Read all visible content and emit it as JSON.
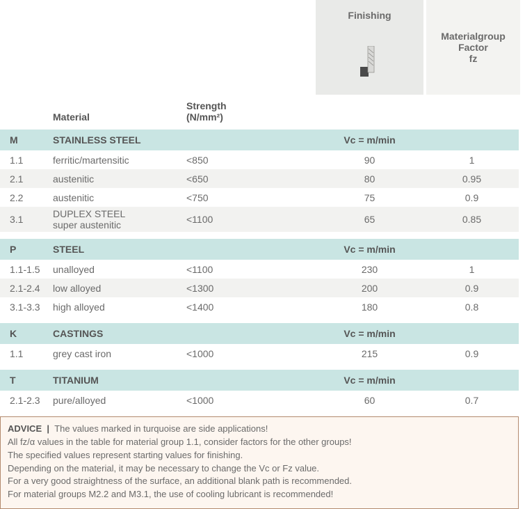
{
  "header": {
    "finishing_label": "Finishing",
    "factor_label_line1": "Materialgroup",
    "factor_label_line2": "Factor",
    "factor_label_line3": "fz"
  },
  "columns": {
    "material": "Material",
    "strength": "Strength (N/mm²)"
  },
  "groups": [
    {
      "code": "M",
      "name": "STAINLESS STEEL",
      "vc_label": "Vc = m/min",
      "head_bg": "#c9e5e3",
      "accent": "#e4cc2f",
      "rows": [
        {
          "code": "1.1",
          "material": "ferritic/martensitic",
          "strength": "<850",
          "finishing": "90",
          "factor": "1",
          "bg": "#ffffff"
        },
        {
          "code": "2.1",
          "material": "austenitic",
          "strength": "<650",
          "finishing": "80",
          "factor": "0.95",
          "bg": "#f2f2f0"
        },
        {
          "code": "2.2",
          "material": "austenitic",
          "strength": "<750",
          "finishing": "75",
          "factor": "0.9",
          "bg": "#ffffff"
        },
        {
          "code": "3.1",
          "material": "DUPLEX STEEL | super austenitic",
          "strength": "<1100",
          "finishing": "65",
          "factor": "0.85",
          "bg": "#f2f2f0",
          "tall": true
        }
      ]
    },
    {
      "code": "P",
      "name": "STEEL",
      "vc_label": "Vc = m/min",
      "head_bg": "#c9e5e3",
      "accent": "#2b3f8f",
      "rows": [
        {
          "code": "1.1-1.5",
          "material": "unalloyed",
          "strength": "<1100",
          "finishing": "230",
          "factor": "1",
          "bg": "#ffffff"
        },
        {
          "code": "2.1-2.4",
          "material": "low alloyed",
          "strength": "<1300",
          "finishing": "200",
          "factor": "0.9",
          "bg": "#f2f2f0"
        },
        {
          "code": "3.1-3.3",
          "material": "high alloyed",
          "strength": "<1400",
          "finishing": "180",
          "factor": "0.8",
          "bg": "#ffffff"
        }
      ]
    },
    {
      "code": "K",
      "name": "CASTINGS",
      "vc_label": "Vc = m/min",
      "head_bg": "#c9e5e3",
      "accent": "#c0392b",
      "rows": [
        {
          "code": "1.1",
          "material": "grey cast iron",
          "strength": "<1000",
          "finishing": "215",
          "factor": "0.9",
          "bg": "#ffffff"
        }
      ]
    },
    {
      "code": "T",
      "name": "TITANIUM",
      "vc_label": "Vc = m/min",
      "head_bg": "#c9e5e3",
      "accent": "#9b968e",
      "rows": [
        {
          "code": "2.1-2.3",
          "material": "pure/alloyed",
          "strength": "<1000",
          "finishing": "60",
          "factor": "0.7",
          "bg": "#ffffff"
        }
      ]
    }
  ],
  "advice": {
    "title": "ADVICE",
    "sep": "|",
    "lines": [
      "The values marked in turquoise are side applications!",
      "All fz/α values in the table for material group 1.1, consider factors for the other groups!",
      "The specified values represent starting values for finishing.",
      "Depending on the material, it may be necessary to change the Vc or Fz value.",
      "For a very good straightness of the surface, an additional blank path is recommended.",
      "For material groups M2.2 and M3.1, the use of cooling lubricant is recommended!"
    ]
  },
  "style": {
    "header_mid_bg": "#e9eae8",
    "header_right_bg": "#f3f3f1"
  }
}
